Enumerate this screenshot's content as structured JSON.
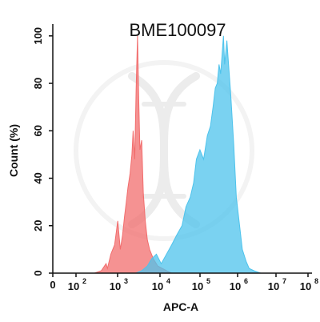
{
  "chart_data": {
    "type": "area",
    "title": "BME100097",
    "xlabel": "APC-A",
    "ylabel": "Count (%)",
    "x_scale": "log",
    "xlim": [
      0,
      100000000
    ],
    "ylim": [
      0,
      105
    ],
    "x_ticks": [
      {
        "label": "0"
      },
      {
        "base": "10",
        "exp": "2"
      },
      {
        "base": "10",
        "exp": "3"
      },
      {
        "base": "10",
        "exp": "4"
      },
      {
        "base": "10",
        "exp": "5"
      },
      {
        "base": "10",
        "exp": "6"
      },
      {
        "base": "10",
        "exp": "7"
      },
      {
        "base": "10",
        "exp": "8"
      }
    ],
    "y_ticks": [
      "0",
      "20",
      "40",
      "60",
      "80",
      "100"
    ],
    "grid": false,
    "legend": "none",
    "series": [
      {
        "color": "#f26d6d",
        "x": [
          300,
          450,
          600,
          650,
          800,
          1000,
          1200,
          1400,
          1600,
          1800,
          2000,
          2200,
          2500,
          2800,
          3000,
          3300,
          3600,
          3900,
          4200,
          4500,
          5000,
          5500,
          6200,
          7000,
          8000,
          10000,
          13000,
          17000,
          22000,
          30000
        ],
        "y": [
          0,
          1,
          4,
          2,
          8,
          12,
          22,
          10,
          16,
          24,
          30,
          36,
          42,
          50,
          60,
          48,
          78,
          100,
          72,
          52,
          56,
          34,
          22,
          14,
          10,
          6,
          3,
          2,
          1,
          0
        ]
      },
      {
        "color": "#4ec3ec",
        "x": [
          3500,
          5000,
          7000,
          9000,
          12000,
          16000,
          22000,
          30000,
          40000,
          55000,
          70000,
          90000,
          110000,
          130000,
          160000,
          200000,
          250000,
          300000,
          350000,
          400000,
          450000,
          500000,
          550000,
          600000,
          650000,
          700000,
          800000,
          900000,
          1000000,
          1200000,
          1400000,
          1700000,
          2000000,
          2500000,
          3000000,
          4000000,
          6000000
        ],
        "y": [
          0,
          1,
          3,
          6,
          8,
          4,
          8,
          12,
          16,
          20,
          28,
          32,
          38,
          48,
          52,
          48,
          58,
          62,
          70,
          78,
          80,
          88,
          84,
          92,
          100,
          88,
          98,
          86,
          76,
          54,
          32,
          20,
          10,
          5,
          2,
          1,
          0
        ]
      }
    ]
  },
  "watermark": {
    "icon": "dna-icon",
    "color": "#eeeeee"
  }
}
